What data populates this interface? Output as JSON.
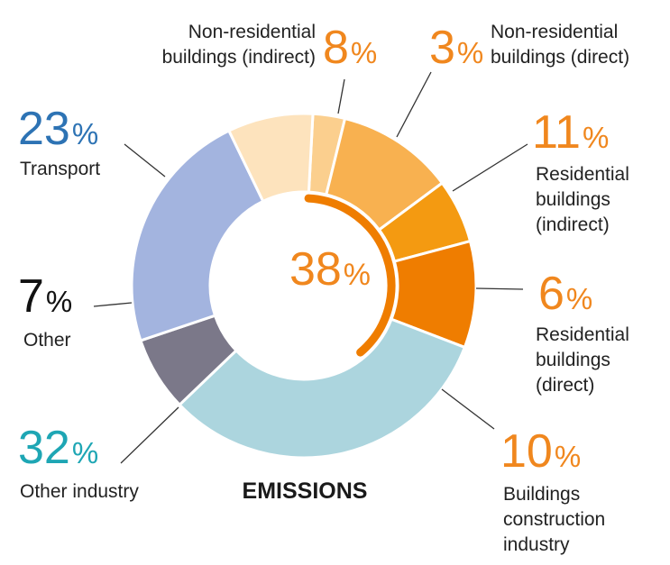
{
  "chart_data": {
    "type": "pie",
    "title": "EMISSIONS",
    "center_value": "38",
    "center_unit": "%",
    "slices": [
      {
        "label_lines": [
          "Non-residential",
          "buildings (direct)"
        ],
        "value": 3,
        "color": "#FBCF8E",
        "value_color": "#F0871E"
      },
      {
        "label_lines": [
          "Residential",
          "buildings",
          "(indirect)"
        ],
        "value": 11,
        "color": "#F8B150",
        "value_color": "#F0871E"
      },
      {
        "label_lines": [
          "Residential",
          "buildings",
          "(direct)"
        ],
        "value": 6,
        "color": "#F49A11",
        "value_color": "#F0871E"
      },
      {
        "label_lines": [
          "Buildings",
          "construction",
          "industry"
        ],
        "value": 10,
        "color": "#EF7D00",
        "value_color": "#F0871E"
      },
      {
        "label_lines": [
          "Other industry"
        ],
        "value": 32,
        "color": "#ACD5DE",
        "value_color": "#1EA6B4"
      },
      {
        "label_lines": [
          "Other"
        ],
        "value": 7,
        "color": "#7B7889",
        "value_color": "#111111"
      },
      {
        "label_lines": [
          "Transport"
        ],
        "value": 23,
        "color": "#A3B4DF",
        "value_color": "#2D73B4"
      },
      {
        "label_lines": [
          "Non-residential",
          "buildings (indirect)"
        ],
        "value": 8,
        "color": "#FDE3BD",
        "value_color": "#F0871E"
      }
    ],
    "unit": "%",
    "buildings_arc_color": "#EF7D00",
    "center_value_color": "#F0871E",
    "legend": "none"
  }
}
